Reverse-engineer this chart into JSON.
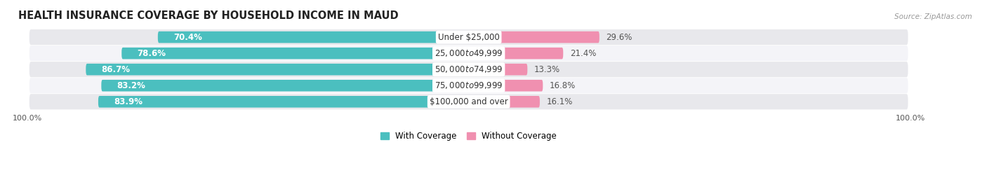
{
  "title": "HEALTH INSURANCE COVERAGE BY HOUSEHOLD INCOME IN MAUD",
  "source": "Source: ZipAtlas.com",
  "categories": [
    "Under $25,000",
    "$25,000 to $49,999",
    "$50,000 to $74,999",
    "$75,000 to $99,999",
    "$100,000 and over"
  ],
  "with_coverage": [
    70.4,
    78.6,
    86.7,
    83.2,
    83.9
  ],
  "without_coverage": [
    29.6,
    21.4,
    13.3,
    16.8,
    16.1
  ],
  "color_with": "#4BBFBF",
  "color_without": "#F090B0",
  "background_color": "#FFFFFF",
  "row_bg_even": "#E8E8EC",
  "row_bg_odd": "#F4F4F8",
  "title_fontsize": 10.5,
  "label_fontsize": 8.5,
  "pct_fontsize": 8.5,
  "tick_fontsize": 8,
  "legend_fontsize": 8.5
}
